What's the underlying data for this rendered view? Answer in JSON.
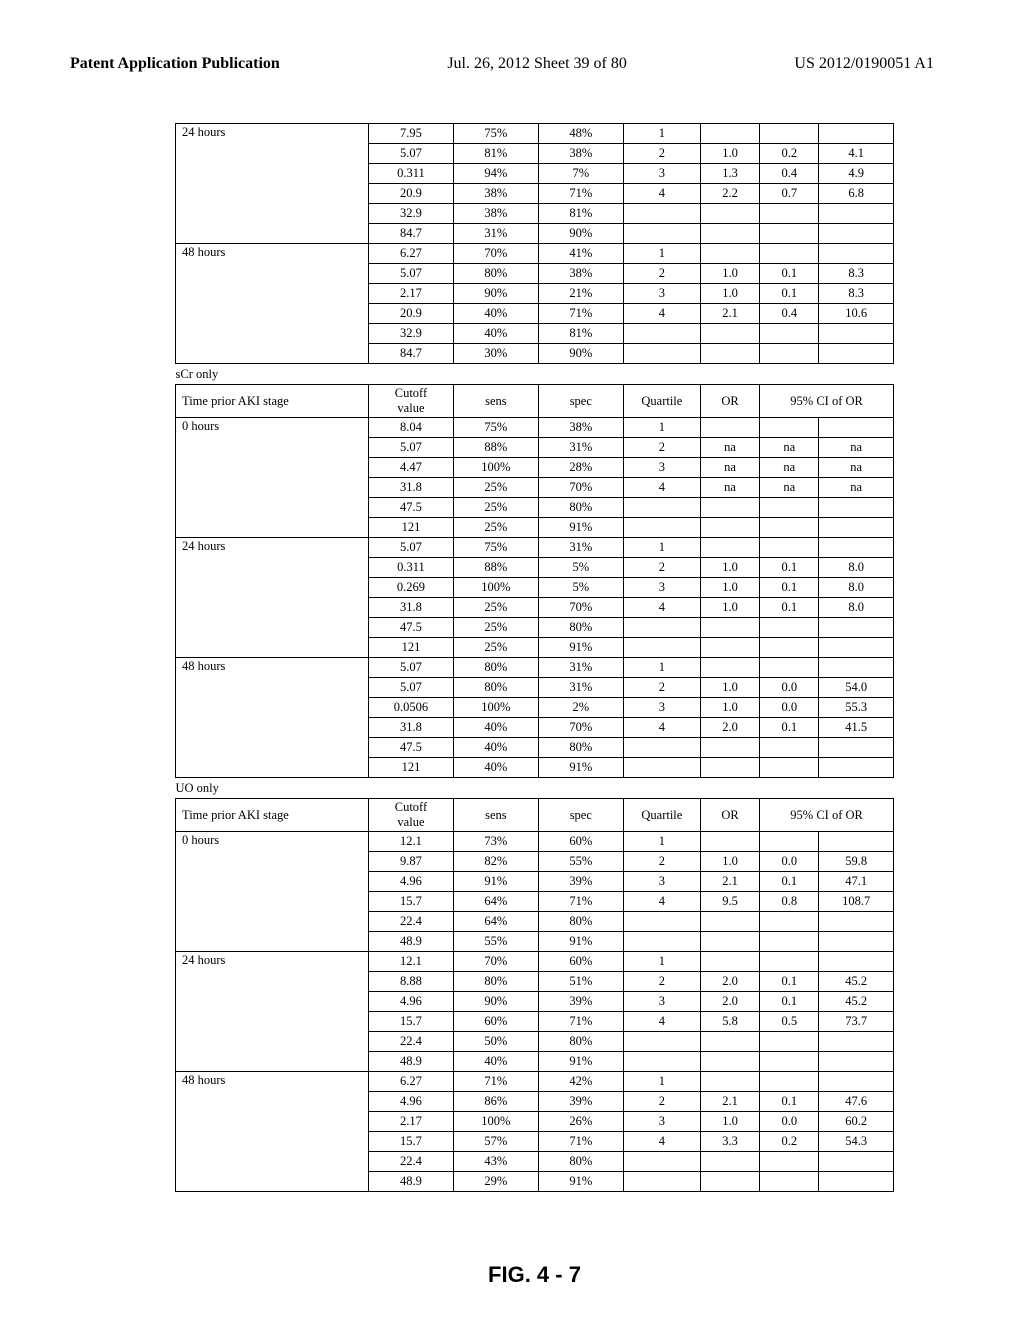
{
  "header": {
    "left": "Patent Application Publication",
    "center": "Jul. 26, 2012  Sheet 39 of 80",
    "right": "US 2012/0190051 A1"
  },
  "figure_label": "FIG. 4 - 7",
  "col_headers": {
    "time": "Time prior AKI stage",
    "cutoff": "Cutoff value",
    "sens": "sens",
    "spec": "spec",
    "quartile": "Quartile",
    "or": "OR",
    "ci": "95% CI of OR"
  },
  "sections": [
    {
      "label": null,
      "show_header": false,
      "groups": [
        {
          "time": "24 hours",
          "rows": [
            {
              "cutoff": "7.95",
              "sens": "75%",
              "spec": "48%",
              "q": "1",
              "or": "",
              "ci1": "",
              "ci2": ""
            },
            {
              "cutoff": "5.07",
              "sens": "81%",
              "spec": "38%",
              "q": "2",
              "or": "1.0",
              "ci1": "0.2",
              "ci2": "4.1"
            },
            {
              "cutoff": "0.311",
              "sens": "94%",
              "spec": "7%",
              "q": "3",
              "or": "1.3",
              "ci1": "0.4",
              "ci2": "4.9"
            },
            {
              "cutoff": "20.9",
              "sens": "38%",
              "spec": "71%",
              "q": "4",
              "or": "2.2",
              "ci1": "0.7",
              "ci2": "6.8"
            },
            {
              "cutoff": "32.9",
              "sens": "38%",
              "spec": "81%",
              "q": "",
              "or": "",
              "ci1": "",
              "ci2": ""
            },
            {
              "cutoff": "84.7",
              "sens": "31%",
              "spec": "90%",
              "q": "",
              "or": "",
              "ci1": "",
              "ci2": ""
            }
          ]
        },
        {
          "time": "48 hours",
          "rows": [
            {
              "cutoff": "6.27",
              "sens": "70%",
              "spec": "41%",
              "q": "1",
              "or": "",
              "ci1": "",
              "ci2": ""
            },
            {
              "cutoff": "5.07",
              "sens": "80%",
              "spec": "38%",
              "q": "2",
              "or": "1.0",
              "ci1": "0.1",
              "ci2": "8.3"
            },
            {
              "cutoff": "2.17",
              "sens": "90%",
              "spec": "21%",
              "q": "3",
              "or": "1.0",
              "ci1": "0.1",
              "ci2": "8.3"
            },
            {
              "cutoff": "20.9",
              "sens": "40%",
              "spec": "71%",
              "q": "4",
              "or": "2.1",
              "ci1": "0.4",
              "ci2": "10.6"
            },
            {
              "cutoff": "32.9",
              "sens": "40%",
              "spec": "81%",
              "q": "",
              "or": "",
              "ci1": "",
              "ci2": ""
            },
            {
              "cutoff": "84.7",
              "sens": "30%",
              "spec": "90%",
              "q": "",
              "or": "",
              "ci1": "",
              "ci2": ""
            }
          ]
        }
      ]
    },
    {
      "label": "sCr only",
      "show_header": true,
      "groups": [
        {
          "time": "0 hours",
          "rows": [
            {
              "cutoff": "8.04",
              "sens": "75%",
              "spec": "38%",
              "q": "1",
              "or": "",
              "ci1": "",
              "ci2": ""
            },
            {
              "cutoff": "5.07",
              "sens": "88%",
              "spec": "31%",
              "q": "2",
              "or": "na",
              "ci1": "na",
              "ci2": "na"
            },
            {
              "cutoff": "4.47",
              "sens": "100%",
              "spec": "28%",
              "q": "3",
              "or": "na",
              "ci1": "na",
              "ci2": "na"
            },
            {
              "cutoff": "31.8",
              "sens": "25%",
              "spec": "70%",
              "q": "4",
              "or": "na",
              "ci1": "na",
              "ci2": "na"
            },
            {
              "cutoff": "47.5",
              "sens": "25%",
              "spec": "80%",
              "q": "",
              "or": "",
              "ci1": "",
              "ci2": ""
            },
            {
              "cutoff": "121",
              "sens": "25%",
              "spec": "91%",
              "q": "",
              "or": "",
              "ci1": "",
              "ci2": ""
            }
          ]
        },
        {
          "time": "24 hours",
          "rows": [
            {
              "cutoff": "5.07",
              "sens": "75%",
              "spec": "31%",
              "q": "1",
              "or": "",
              "ci1": "",
              "ci2": ""
            },
            {
              "cutoff": "0.311",
              "sens": "88%",
              "spec": "5%",
              "q": "2",
              "or": "1.0",
              "ci1": "0.1",
              "ci2": "8.0"
            },
            {
              "cutoff": "0.269",
              "sens": "100%",
              "spec": "5%",
              "q": "3",
              "or": "1.0",
              "ci1": "0.1",
              "ci2": "8.0"
            },
            {
              "cutoff": "31.8",
              "sens": "25%",
              "spec": "70%",
              "q": "4",
              "or": "1.0",
              "ci1": "0.1",
              "ci2": "8.0"
            },
            {
              "cutoff": "47.5",
              "sens": "25%",
              "spec": "80%",
              "q": "",
              "or": "",
              "ci1": "",
              "ci2": ""
            },
            {
              "cutoff": "121",
              "sens": "25%",
              "spec": "91%",
              "q": "",
              "or": "",
              "ci1": "",
              "ci2": ""
            }
          ]
        },
        {
          "time": "48 hours",
          "rows": [
            {
              "cutoff": "5.07",
              "sens": "80%",
              "spec": "31%",
              "q": "1",
              "or": "",
              "ci1": "",
              "ci2": ""
            },
            {
              "cutoff": "5.07",
              "sens": "80%",
              "spec": "31%",
              "q": "2",
              "or": "1.0",
              "ci1": "0.0",
              "ci2": "54.0"
            },
            {
              "cutoff": "0.0506",
              "sens": "100%",
              "spec": "2%",
              "q": "3",
              "or": "1.0",
              "ci1": "0.0",
              "ci2": "55.3"
            },
            {
              "cutoff": "31.8",
              "sens": "40%",
              "spec": "70%",
              "q": "4",
              "or": "2.0",
              "ci1": "0.1",
              "ci2": "41.5"
            },
            {
              "cutoff": "47.5",
              "sens": "40%",
              "spec": "80%",
              "q": "",
              "or": "",
              "ci1": "",
              "ci2": ""
            },
            {
              "cutoff": "121",
              "sens": "40%",
              "spec": "91%",
              "q": "",
              "or": "",
              "ci1": "",
              "ci2": ""
            }
          ]
        }
      ]
    },
    {
      "label": "UO only",
      "show_header": true,
      "groups": [
        {
          "time": "0 hours",
          "rows": [
            {
              "cutoff": "12.1",
              "sens": "73%",
              "spec": "60%",
              "q": "1",
              "or": "",
              "ci1": "",
              "ci2": ""
            },
            {
              "cutoff": "9.87",
              "sens": "82%",
              "spec": "55%",
              "q": "2",
              "or": "1.0",
              "ci1": "0.0",
              "ci2": "59.8"
            },
            {
              "cutoff": "4.96",
              "sens": "91%",
              "spec": "39%",
              "q": "3",
              "or": "2.1",
              "ci1": "0.1",
              "ci2": "47.1"
            },
            {
              "cutoff": "15.7",
              "sens": "64%",
              "spec": "71%",
              "q": "4",
              "or": "9.5",
              "ci1": "0.8",
              "ci2": "108.7"
            },
            {
              "cutoff": "22.4",
              "sens": "64%",
              "spec": "80%",
              "q": "",
              "or": "",
              "ci1": "",
              "ci2": ""
            },
            {
              "cutoff": "48.9",
              "sens": "55%",
              "spec": "91%",
              "q": "",
              "or": "",
              "ci1": "",
              "ci2": ""
            }
          ]
        },
        {
          "time": "24 hours",
          "rows": [
            {
              "cutoff": "12.1",
              "sens": "70%",
              "spec": "60%",
              "q": "1",
              "or": "",
              "ci1": "",
              "ci2": ""
            },
            {
              "cutoff": "8.88",
              "sens": "80%",
              "spec": "51%",
              "q": "2",
              "or": "2.0",
              "ci1": "0.1",
              "ci2": "45.2"
            },
            {
              "cutoff": "4.96",
              "sens": "90%",
              "spec": "39%",
              "q": "3",
              "or": "2.0",
              "ci1": "0.1",
              "ci2": "45.2"
            },
            {
              "cutoff": "15.7",
              "sens": "60%",
              "spec": "71%",
              "q": "4",
              "or": "5.8",
              "ci1": "0.5",
              "ci2": "73.7"
            },
            {
              "cutoff": "22.4",
              "sens": "50%",
              "spec": "80%",
              "q": "",
              "or": "",
              "ci1": "",
              "ci2": ""
            },
            {
              "cutoff": "48.9",
              "sens": "40%",
              "spec": "91%",
              "q": "",
              "or": "",
              "ci1": "",
              "ci2": ""
            }
          ]
        },
        {
          "time": "48 hours",
          "rows": [
            {
              "cutoff": "6.27",
              "sens": "71%",
              "spec": "42%",
              "q": "1",
              "or": "",
              "ci1": "",
              "ci2": ""
            },
            {
              "cutoff": "4.96",
              "sens": "86%",
              "spec": "39%",
              "q": "2",
              "or": "2.1",
              "ci1": "0.1",
              "ci2": "47.6"
            },
            {
              "cutoff": "2.17",
              "sens": "100%",
              "spec": "26%",
              "q": "3",
              "or": "1.0",
              "ci1": "0.0",
              "ci2": "60.2"
            },
            {
              "cutoff": "15.7",
              "sens": "57%",
              "spec": "71%",
              "q": "4",
              "or": "3.3",
              "ci1": "0.2",
              "ci2": "54.3"
            },
            {
              "cutoff": "22.4",
              "sens": "43%",
              "spec": "80%",
              "q": "",
              "or": "",
              "ci1": "",
              "ci2": ""
            },
            {
              "cutoff": "48.9",
              "sens": "29%",
              "spec": "91%",
              "q": "",
              "or": "",
              "ci1": "",
              "ci2": ""
            }
          ]
        }
      ]
    }
  ]
}
